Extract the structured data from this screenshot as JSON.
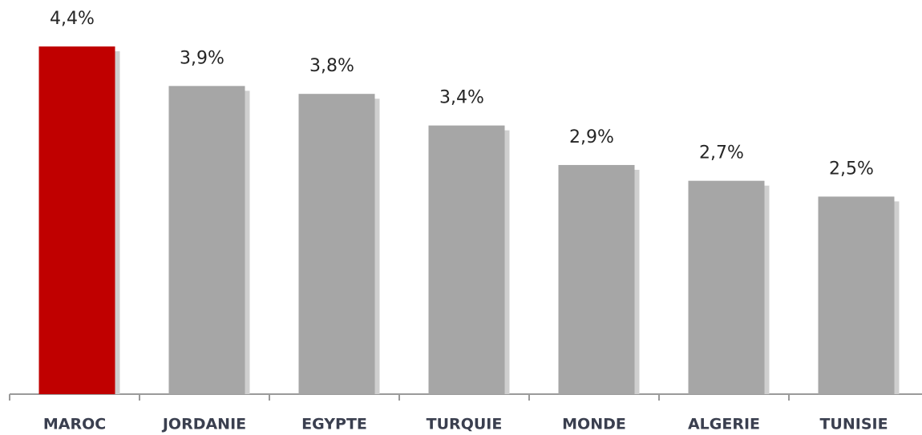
{
  "chart_data": {
    "type": "bar",
    "categories": [
      "MAROC",
      "JORDANIE",
      "EGYPTE",
      "TURQUIE",
      "MONDE",
      "ALGERIE",
      "TUNISIE"
    ],
    "values": [
      4.4,
      3.9,
      3.8,
      3.4,
      2.9,
      2.7,
      2.5
    ],
    "value_labels": [
      "4,4%",
      "3,9%",
      "3,8%",
      "3,4%",
      "2,9%",
      "2,7%",
      "2,5%"
    ],
    "colors": [
      "#c00000",
      "#a6a6a6",
      "#a6a6a6",
      "#a6a6a6",
      "#a6a6a6",
      "#a6a6a6",
      "#a6a6a6"
    ]
  }
}
